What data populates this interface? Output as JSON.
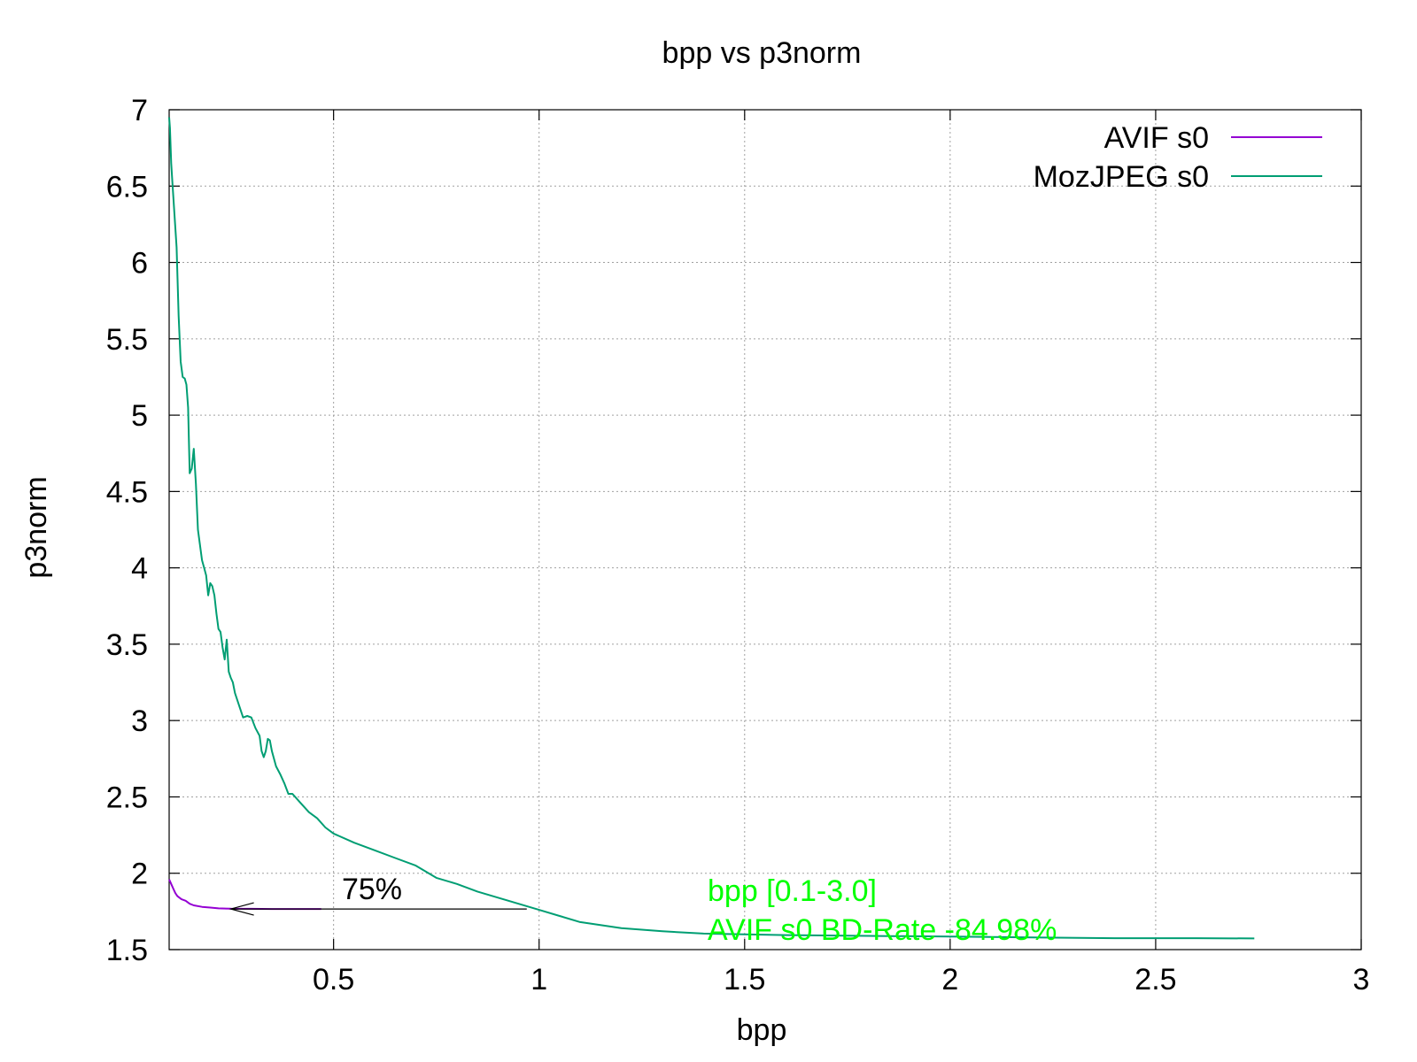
{
  "chart_data": {
    "type": "line",
    "title": "bpp vs p3norm",
    "xlabel": "bpp",
    "ylabel": "p3norm",
    "xlim": [
      0.1,
      3.0
    ],
    "ylim": [
      1.5,
      7.0
    ],
    "grid": true,
    "legend_position": "top-right",
    "x_ticks": [
      0.5,
      1,
      1.5,
      2,
      2.5,
      3
    ],
    "x_tick_labels": [
      "0.5",
      "1",
      "1.5",
      "2",
      "2.5",
      "3"
    ],
    "y_ticks": [
      1.5,
      2,
      2.5,
      3,
      3.5,
      4,
      4.5,
      5,
      5.5,
      6,
      6.5,
      7
    ],
    "y_tick_labels": [
      "1.5",
      "2",
      "2.5",
      "3",
      "3.5",
      "4",
      "4.5",
      "5",
      "5.5",
      "6",
      "6.5",
      "7"
    ],
    "series": [
      {
        "name": "AVIF s0",
        "color": "#9400d3",
        "x": [
          0.1,
          0.105,
          0.11,
          0.115,
          0.12,
          0.13,
          0.14,
          0.15,
          0.16,
          0.18,
          0.2,
          0.22,
          0.25,
          0.3,
          0.35,
          0.4,
          0.47
        ],
        "y": [
          1.96,
          1.93,
          1.9,
          1.87,
          1.85,
          1.83,
          1.82,
          1.8,
          1.79,
          1.78,
          1.775,
          1.77,
          1.768,
          1.767,
          1.766,
          1.766,
          1.766
        ]
      },
      {
        "name": "MozJPEG s0",
        "color": "#009e73",
        "x": [
          0.1,
          0.102,
          0.105,
          0.108,
          0.112,
          0.118,
          0.123,
          0.128,
          0.133,
          0.138,
          0.142,
          0.146,
          0.15,
          0.155,
          0.16,
          0.165,
          0.17,
          0.175,
          0.18,
          0.185,
          0.19,
          0.195,
          0.2,
          0.205,
          0.21,
          0.215,
          0.22,
          0.225,
          0.23,
          0.235,
          0.24,
          0.245,
          0.25,
          0.255,
          0.26,
          0.27,
          0.28,
          0.29,
          0.3,
          0.31,
          0.32,
          0.325,
          0.33,
          0.335,
          0.34,
          0.345,
          0.35,
          0.36,
          0.37,
          0.38,
          0.39,
          0.4,
          0.42,
          0.44,
          0.46,
          0.48,
          0.5,
          0.55,
          0.6,
          0.65,
          0.7,
          0.75,
          0.8,
          0.85,
          0.9,
          0.95,
          1.0,
          1.05,
          1.1,
          1.2,
          1.3,
          1.4,
          1.5,
          1.6,
          1.8,
          2.0,
          2.2,
          2.4,
          2.6,
          2.74
        ],
        "y": [
          6.95,
          6.88,
          6.65,
          6.52,
          6.35,
          6.1,
          5.65,
          5.35,
          5.25,
          5.24,
          5.2,
          5.05,
          4.62,
          4.65,
          4.78,
          4.55,
          4.25,
          4.15,
          4.05,
          4.0,
          3.95,
          3.82,
          3.9,
          3.88,
          3.82,
          3.7,
          3.6,
          3.58,
          3.48,
          3.4,
          3.53,
          3.32,
          3.28,
          3.25,
          3.18,
          3.1,
          3.02,
          3.03,
          3.02,
          2.95,
          2.9,
          2.8,
          2.76,
          2.8,
          2.88,
          2.87,
          2.8,
          2.7,
          2.65,
          2.59,
          2.52,
          2.52,
          2.46,
          2.4,
          2.36,
          2.3,
          2.26,
          2.2,
          2.15,
          2.1,
          2.05,
          1.97,
          1.93,
          1.88,
          1.84,
          1.8,
          1.76,
          1.72,
          1.68,
          1.64,
          1.62,
          1.605,
          1.6,
          1.595,
          1.59,
          1.585,
          1.58,
          1.575,
          1.575,
          1.573
        ]
      }
    ],
    "annotations": {
      "arrow": {
        "from": [
          0.97,
          1.766
        ],
        "to": [
          0.25,
          1.766
        ],
        "color": "#000000",
        "label": "75%",
        "label_pos": [
          0.52,
          1.83
        ]
      },
      "bd_rate": {
        "lines": [
          "bpp [0.1-3.0]",
          "AVIF s0 BD-Rate -84.98%"
        ],
        "color": "#00ff00",
        "pos": [
          1.41,
          1.82
        ]
      }
    }
  }
}
